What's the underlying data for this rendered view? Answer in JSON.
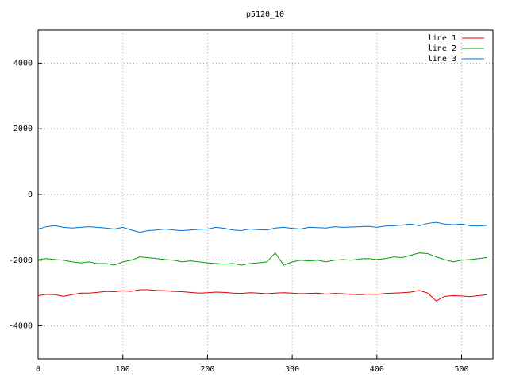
{
  "chart_data": {
    "type": "line",
    "title": "p5120_10",
    "x": [
      0,
      10,
      20,
      30,
      40,
      50,
      60,
      70,
      80,
      90,
      100,
      110,
      120,
      130,
      140,
      150,
      160,
      170,
      180,
      190,
      200,
      210,
      220,
      230,
      240,
      250,
      260,
      270,
      280,
      290,
      300,
      310,
      320,
      330,
      340,
      350,
      360,
      370,
      380,
      390,
      400,
      410,
      420,
      430,
      440,
      450,
      460,
      470,
      480,
      490,
      500,
      510,
      520,
      530
    ],
    "xlim": [
      0,
      537
    ],
    "xticks": [
      0,
      100,
      200,
      300,
      400,
      500
    ],
    "ylim": [
      -5000,
      5000
    ],
    "yticks": [
      -4000,
      -2000,
      0,
      2000,
      4000
    ],
    "grid": true,
    "legend": "top-right",
    "series": [
      {
        "name": "line 1",
        "color": "#e00000",
        "values": [
          -3080,
          -3040,
          -3050,
          -3100,
          -3050,
          -3000,
          -3000,
          -2980,
          -2950,
          -2960,
          -2930,
          -2950,
          -2900,
          -2900,
          -2920,
          -2930,
          -2950,
          -2960,
          -2980,
          -3000,
          -2990,
          -2970,
          -2980,
          -3000,
          -3010,
          -2990,
          -3000,
          -3020,
          -3000,
          -2990,
          -3000,
          -3020,
          -3010,
          -3000,
          -3030,
          -3010,
          -3020,
          -3040,
          -3050,
          -3030,
          -3040,
          -3010,
          -3000,
          -2990,
          -2970,
          -2920,
          -3000,
          -3240,
          -3100,
          -3080,
          -3090,
          -3110,
          -3080,
          -3050
        ]
      },
      {
        "name": "line 2",
        "color": "#00a000",
        "values": [
          -1980,
          -1950,
          -1980,
          -2000,
          -2050,
          -2080,
          -2050,
          -2100,
          -2100,
          -2150,
          -2050,
          -2000,
          -1900,
          -1920,
          -1950,
          -1980,
          -2000,
          -2050,
          -2020,
          -2050,
          -2080,
          -2100,
          -2120,
          -2100,
          -2150,
          -2100,
          -2080,
          -2050,
          -1780,
          -2150,
          -2050,
          -2000,
          -2020,
          -2000,
          -2050,
          -2000,
          -1980,
          -2000,
          -1960,
          -1950,
          -1980,
          -1950,
          -1900,
          -1920,
          -1850,
          -1780,
          -1800,
          -1900,
          -1980,
          -2050,
          -2000,
          -1980,
          -1950,
          -1920
        ]
      },
      {
        "name": "line 3",
        "color": "#0070d0",
        "values": [
          -1050,
          -980,
          -950,
          -1000,
          -1020,
          -1000,
          -980,
          -1000,
          -1020,
          -1050,
          -1000,
          -1080,
          -1150,
          -1100,
          -1080,
          -1050,
          -1080,
          -1100,
          -1080,
          -1060,
          -1050,
          -1000,
          -1030,
          -1080,
          -1100,
          -1050,
          -1070,
          -1080,
          -1020,
          -1000,
          -1030,
          -1050,
          -1000,
          -1010,
          -1020,
          -980,
          -1000,
          -990,
          -980,
          -970,
          -1000,
          -960,
          -950,
          -930,
          -900,
          -950,
          -880,
          -850,
          -900,
          -920,
          -900,
          -950,
          -960,
          -940
        ]
      }
    ]
  }
}
